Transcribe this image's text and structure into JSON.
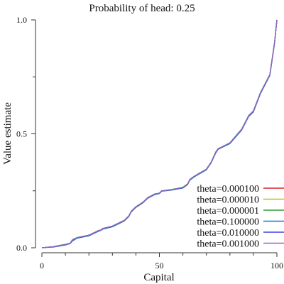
{
  "chart_data": {
    "type": "line",
    "title": "Probability of head: 0.25",
    "xlabel": "Capital",
    "ylabel": "Value estimate",
    "xlim": [
      0,
      100
    ],
    "ylim": [
      0,
      1
    ],
    "x_ticks": [
      0,
      50,
      100
    ],
    "x_minor_ticks": [
      10,
      20,
      30,
      40,
      60,
      70,
      80,
      90
    ],
    "y_ticks": [
      {
        "value": 0.0,
        "label": "0.0"
      },
      {
        "value": 0.5,
        "label": "0.5"
      },
      {
        "value": 1.0,
        "label": "1.0"
      }
    ],
    "y_minor_ticks": [
      0.25,
      0.75
    ],
    "grid": false,
    "legend_position": "bottom-right",
    "x": [
      0,
      5,
      10,
      12,
      13,
      15,
      20,
      22,
      24,
      25,
      26,
      30,
      35,
      37,
      38,
      40,
      43,
      45,
      48,
      50,
      51,
      55,
      60,
      62,
      63,
      65,
      70,
      72,
      74,
      75,
      76,
      80,
      85,
      87,
      88,
      90,
      93,
      95,
      97,
      98,
      99,
      100
    ],
    "series": [
      {
        "name": "theta=0.000100",
        "color": "#d62728",
        "values": [
          0.0,
          0.005,
          0.015,
          0.02,
          0.035,
          0.045,
          0.055,
          0.065,
          0.075,
          0.078,
          0.085,
          0.095,
          0.12,
          0.14,
          0.16,
          0.18,
          0.2,
          0.22,
          0.236,
          0.24,
          0.25,
          0.255,
          0.265,
          0.28,
          0.3,
          0.315,
          0.345,
          0.375,
          0.42,
          0.435,
          0.44,
          0.46,
          0.52,
          0.56,
          0.58,
          0.6,
          0.68,
          0.72,
          0.76,
          0.83,
          0.9,
          1.0
        ]
      },
      {
        "name": "theta=0.000010",
        "color": "#bcbd22",
        "values": [
          0.0,
          0.005,
          0.015,
          0.02,
          0.035,
          0.045,
          0.055,
          0.065,
          0.075,
          0.078,
          0.085,
          0.095,
          0.12,
          0.14,
          0.16,
          0.18,
          0.2,
          0.22,
          0.236,
          0.24,
          0.25,
          0.255,
          0.265,
          0.28,
          0.3,
          0.315,
          0.345,
          0.375,
          0.42,
          0.435,
          0.44,
          0.46,
          0.52,
          0.56,
          0.58,
          0.6,
          0.68,
          0.72,
          0.76,
          0.83,
          0.9,
          1.0
        ]
      },
      {
        "name": "theta=0.000001",
        "color": "#2ca02c",
        "values": [
          0.0,
          0.005,
          0.015,
          0.02,
          0.035,
          0.045,
          0.055,
          0.065,
          0.075,
          0.078,
          0.085,
          0.095,
          0.12,
          0.14,
          0.16,
          0.18,
          0.2,
          0.22,
          0.236,
          0.24,
          0.25,
          0.255,
          0.265,
          0.28,
          0.3,
          0.315,
          0.345,
          0.375,
          0.42,
          0.435,
          0.44,
          0.46,
          0.52,
          0.56,
          0.58,
          0.6,
          0.68,
          0.72,
          0.76,
          0.83,
          0.9,
          1.0
        ]
      },
      {
        "name": "theta=0.100000",
        "color": "#1f77b4",
        "values": [
          0.0,
          0.003,
          0.012,
          0.018,
          0.03,
          0.042,
          0.052,
          0.062,
          0.072,
          0.076,
          0.082,
          0.092,
          0.117,
          0.137,
          0.157,
          0.177,
          0.197,
          0.217,
          0.233,
          0.238,
          0.248,
          0.253,
          0.262,
          0.277,
          0.297,
          0.312,
          0.342,
          0.372,
          0.416,
          0.432,
          0.437,
          0.457,
          0.516,
          0.556,
          0.576,
          0.596,
          0.676,
          0.716,
          0.756,
          0.826,
          0.896,
          1.0
        ]
      },
      {
        "name": "theta=0.010000",
        "color": "#4040e0",
        "values": [
          0.0,
          0.005,
          0.015,
          0.02,
          0.035,
          0.045,
          0.055,
          0.065,
          0.075,
          0.078,
          0.085,
          0.095,
          0.12,
          0.14,
          0.16,
          0.18,
          0.2,
          0.22,
          0.236,
          0.24,
          0.25,
          0.255,
          0.265,
          0.28,
          0.3,
          0.315,
          0.345,
          0.375,
          0.42,
          0.435,
          0.44,
          0.46,
          0.52,
          0.56,
          0.58,
          0.6,
          0.68,
          0.72,
          0.76,
          0.83,
          0.9,
          1.0
        ]
      },
      {
        "name": "theta=0.001000",
        "color": "#9467bd",
        "values": [
          0.0,
          0.005,
          0.015,
          0.02,
          0.035,
          0.045,
          0.055,
          0.065,
          0.075,
          0.078,
          0.085,
          0.095,
          0.12,
          0.14,
          0.16,
          0.18,
          0.2,
          0.22,
          0.236,
          0.24,
          0.25,
          0.255,
          0.265,
          0.28,
          0.3,
          0.315,
          0.345,
          0.375,
          0.42,
          0.435,
          0.44,
          0.46,
          0.52,
          0.56,
          0.58,
          0.6,
          0.68,
          0.72,
          0.76,
          0.83,
          0.9,
          1.0
        ]
      }
    ]
  }
}
